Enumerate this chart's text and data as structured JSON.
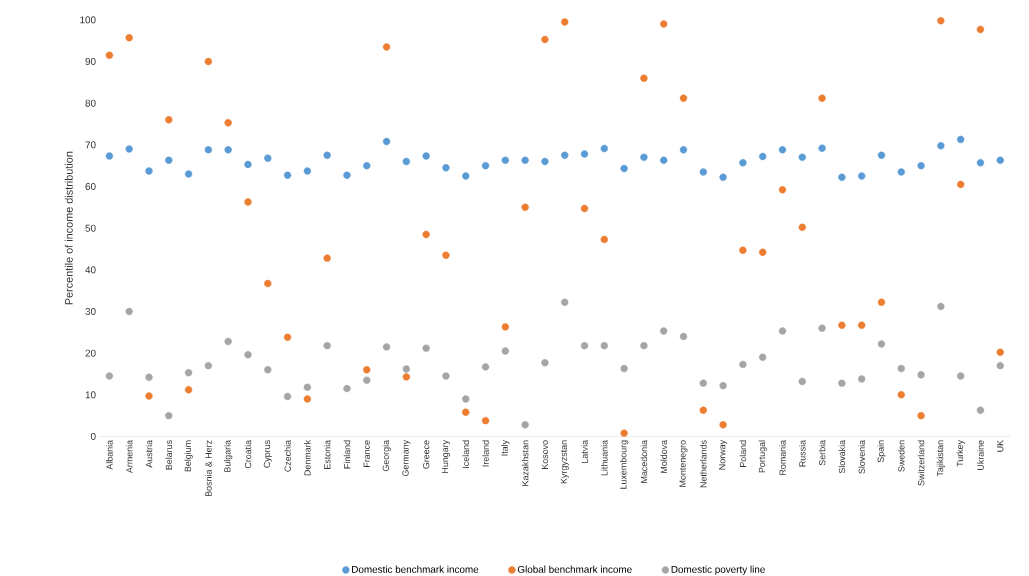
{
  "chart_data": {
    "type": "scatter",
    "ylabel": "Percentile of income distribution",
    "categories": [
      "Albania",
      "Armenia",
      "Austria",
      "Belarus",
      "Belgium",
      "Bosnia & Herz",
      "Bulgaria",
      "Croatia",
      "Cyprus",
      "Czechia",
      "Denmark",
      "Estonia",
      "Finland",
      "France",
      "Georgia",
      "Germany",
      "Greece",
      "Hungary",
      "Iceland",
      "Ireland",
      "Italy",
      "Kazakhstan",
      "Kosovo",
      "Kyrgyzstan",
      "Latvia",
      "Lithuania",
      "Luxembourg",
      "Macedonia",
      "Moldova",
      "Montenegro",
      "Netherlands",
      "Norway",
      "Poland",
      "Portugal",
      "Romania",
      "Russia",
      "Serbia",
      "Slovakia",
      "Slovenia",
      "Spain",
      "Sweden",
      "Switzerland",
      "Tajikistan",
      "Turkey",
      "Ukraine",
      "UK"
    ],
    "series": [
      {
        "name": "Domestic benchmark income",
        "color": "#5b9bd5",
        "values": [
          67.3,
          69,
          63.7,
          66.3,
          63,
          68.8,
          68.8,
          65.3,
          66.8,
          62.7,
          63.7,
          67.5,
          62.7,
          65,
          70.8,
          66,
          67.3,
          64.5,
          62.5,
          65,
          66.3,
          66.3,
          66,
          67.5,
          67.8,
          69.1,
          64.3,
          67,
          66.3,
          68.8,
          63.5,
          62.2,
          65.7,
          67.2,
          68.8,
          67,
          69.2,
          62.2,
          62.5,
          67.5,
          63.5,
          65,
          69.8,
          71.3,
          65.7,
          66.3
        ]
      },
      {
        "name": "Global benchmark income",
        "color": "#ed7d31",
        "values": [
          91.5,
          95.7,
          9.7,
          76,
          11.2,
          90,
          75.3,
          56.3,
          36.7,
          23.8,
          9,
          42.8,
          null,
          16,
          93.5,
          14.3,
          48.5,
          43.5,
          5.8,
          3.8,
          26.3,
          55,
          95.3,
          99.5,
          54.7,
          47.3,
          0.8,
          86,
          99,
          81.2,
          6.3,
          2.8,
          44.7,
          44.2,
          59.2,
          50.2,
          81.2,
          26.7,
          26.7,
          32.2,
          10,
          5,
          99.8,
          60.5,
          97.7,
          20.2
        ]
      },
      {
        "name": "Domestic poverty line",
        "color": "#a5a5a5",
        "values": [
          14.5,
          30,
          14.2,
          5,
          15.3,
          17,
          22.8,
          19.6,
          16,
          9.6,
          11.8,
          21.8,
          11.5,
          13.5,
          21.5,
          16.2,
          21.2,
          14.5,
          9,
          16.7,
          20.5,
          2.8,
          17.7,
          32.2,
          21.8,
          21.8,
          16.3,
          21.8,
          25.3,
          24,
          12.8,
          12.2,
          17.3,
          19,
          25.3,
          13.2,
          26,
          12.8,
          13.8,
          22.2,
          16.3,
          14.8,
          31.2,
          14.5,
          6.3,
          17
        ]
      }
    ],
    "ylim": [
      0,
      100
    ],
    "yticks": [
      0,
      10,
      20,
      30,
      40,
      50,
      60,
      70,
      80,
      90,
      100
    ],
    "grid": false,
    "legend": "bottom",
    "marker": "circle"
  }
}
